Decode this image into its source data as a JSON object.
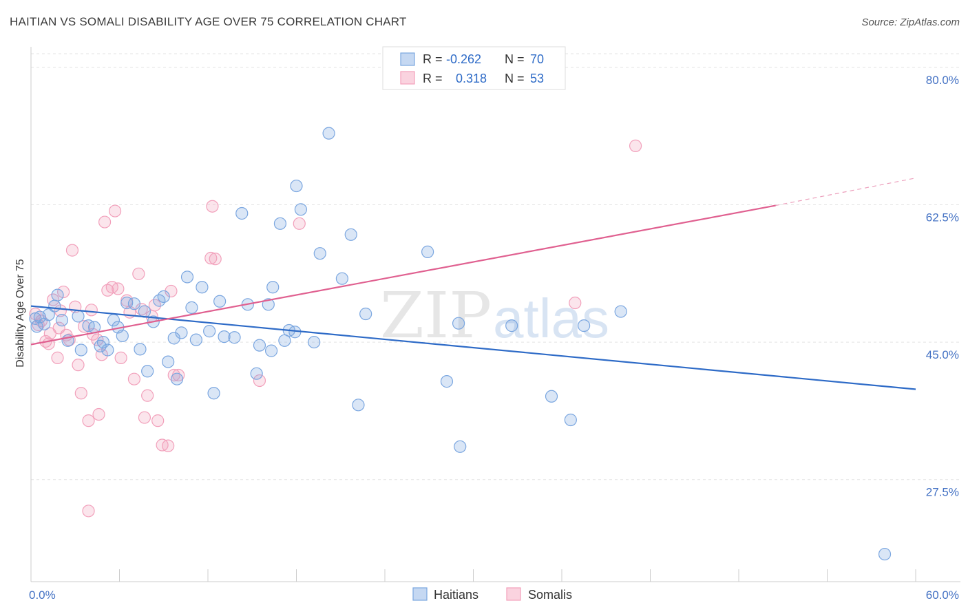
{
  "title": "HAITIAN VS SOMALI DISABILITY AGE OVER 75 CORRELATION CHART",
  "source": "Source: ZipAtlas.com",
  "chart_data": {
    "type": "scatter",
    "ylabel": "Disability Age Over 75",
    "x_tick_labels": [
      "0.0%",
      "60.0%"
    ],
    "y_tick_labels": [
      "80.0%",
      "62.5%",
      "45.0%",
      "27.5%"
    ],
    "y_ticks": [
      80.0,
      62.5,
      45.0,
      27.5
    ],
    "xlim": [
      0,
      60
    ],
    "ylim": [
      14.5,
      82
    ],
    "grid": true,
    "legend_position": "top-center",
    "watermark": [
      "ZIP",
      "atlas"
    ],
    "series": [
      {
        "name": "Haitians",
        "color": "#7aa6e0",
        "line_color": "#2e6bc7",
        "legend_r_label": "R = ",
        "legend_r_value": "-0.262",
        "legend_n_label": "N = ",
        "legend_n_value": "70",
        "trend": {
          "x": [
            0,
            60
          ],
          "y": [
            49.6,
            39.0
          ]
        },
        "points": [
          [
            0.4,
            47.0
          ],
          [
            0.6,
            48.2
          ],
          [
            0.9,
            47.3
          ],
          [
            1.2,
            48.5
          ],
          [
            1.6,
            49.6
          ],
          [
            1.8,
            51.0
          ],
          [
            2.1,
            47.8
          ],
          [
            2.5,
            45.2
          ],
          [
            3.2,
            48.3
          ],
          [
            3.4,
            44.0
          ],
          [
            3.9,
            47.1
          ],
          [
            4.3,
            46.9
          ],
          [
            4.7,
            44.5
          ],
          [
            4.9,
            45.0
          ],
          [
            5.2,
            44.0
          ],
          [
            5.6,
            47.8
          ],
          [
            5.9,
            46.9
          ],
          [
            6.2,
            45.8
          ],
          [
            6.5,
            50.0
          ],
          [
            7.0,
            49.9
          ],
          [
            7.4,
            44.1
          ],
          [
            7.7,
            48.9
          ],
          [
            7.9,
            41.3
          ],
          [
            8.3,
            47.6
          ],
          [
            8.7,
            50.3
          ],
          [
            9.0,
            50.8
          ],
          [
            9.3,
            42.5
          ],
          [
            9.7,
            45.5
          ],
          [
            9.9,
            40.3
          ],
          [
            10.2,
            46.2
          ],
          [
            10.6,
            53.3
          ],
          [
            10.9,
            49.4
          ],
          [
            11.2,
            45.3
          ],
          [
            11.6,
            52.0
          ],
          [
            12.1,
            46.4
          ],
          [
            12.4,
            38.5
          ],
          [
            12.8,
            50.2
          ],
          [
            13.1,
            45.7
          ],
          [
            13.8,
            45.6
          ],
          [
            14.3,
            61.4
          ],
          [
            14.7,
            49.8
          ],
          [
            15.3,
            41.0
          ],
          [
            15.5,
            44.6
          ],
          [
            16.1,
            49.8
          ],
          [
            16.3,
            43.9
          ],
          [
            16.4,
            52.0
          ],
          [
            16.9,
            60.1
          ],
          [
            17.2,
            45.2
          ],
          [
            17.5,
            46.5
          ],
          [
            17.9,
            46.3
          ],
          [
            18.0,
            64.9
          ],
          [
            18.3,
            61.9
          ],
          [
            19.2,
            45.0
          ],
          [
            19.6,
            56.3
          ],
          [
            20.2,
            71.6
          ],
          [
            21.1,
            53.1
          ],
          [
            21.7,
            58.7
          ],
          [
            22.2,
            37.0
          ],
          [
            22.7,
            48.6
          ],
          [
            26.9,
            56.5
          ],
          [
            28.2,
            40.0
          ],
          [
            29.0,
            47.4
          ],
          [
            29.1,
            31.7
          ],
          [
            32.6,
            47.1
          ],
          [
            35.3,
            38.1
          ],
          [
            36.6,
            35.1
          ],
          [
            37.5,
            47.1
          ],
          [
            40.0,
            48.9
          ],
          [
            57.9,
            18.0
          ],
          [
            0.3,
            48.0
          ]
        ]
      },
      {
        "name": "Somalis",
        "color": "#f2a0bb",
        "line_color": "#e06090",
        "legend_r_label": "R = ",
        "legend_r_value": "0.318",
        "legend_n_label": "N = ",
        "legend_n_value": "53",
        "trend": {
          "x": [
            0,
            50.5
          ],
          "y": [
            44.7,
            62.4
          ]
        },
        "trend_ext": {
          "x": [
            50.5,
            60
          ],
          "y": [
            62.4,
            65.9
          ]
        },
        "points": [
          [
            0.3,
            48.6
          ],
          [
            0.7,
            47.7
          ],
          [
            1.0,
            45.1
          ],
          [
            1.3,
            46.1
          ],
          [
            1.5,
            50.4
          ],
          [
            1.8,
            43.0
          ],
          [
            2.0,
            49.0
          ],
          [
            2.2,
            51.4
          ],
          [
            2.6,
            45.3
          ],
          [
            2.8,
            56.7
          ],
          [
            3.0,
            49.5
          ],
          [
            3.2,
            42.1
          ],
          [
            3.4,
            38.5
          ],
          [
            3.6,
            47.0
          ],
          [
            3.9,
            35.0
          ],
          [
            4.1,
            49.1
          ],
          [
            4.5,
            45.3
          ],
          [
            4.6,
            35.8
          ],
          [
            4.8,
            43.4
          ],
          [
            5.0,
            60.3
          ],
          [
            5.2,
            51.6
          ],
          [
            5.5,
            52.0
          ],
          [
            5.7,
            61.7
          ],
          [
            5.9,
            51.8
          ],
          [
            6.1,
            43.0
          ],
          [
            6.5,
            50.3
          ],
          [
            7.0,
            40.3
          ],
          [
            7.3,
            53.7
          ],
          [
            7.7,
            35.4
          ],
          [
            7.9,
            38.2
          ],
          [
            8.2,
            48.3
          ],
          [
            8.4,
            49.7
          ],
          [
            8.6,
            35.0
          ],
          [
            8.9,
            31.9
          ],
          [
            9.3,
            31.8
          ],
          [
            9.5,
            51.5
          ],
          [
            9.7,
            40.8
          ],
          [
            10.0,
            40.8
          ],
          [
            12.3,
            62.3
          ],
          [
            12.2,
            55.7
          ],
          [
            12.5,
            55.6
          ],
          [
            15.5,
            40.1
          ],
          [
            18.2,
            60.1
          ],
          [
            36.9,
            50.0
          ],
          [
            41.0,
            70.0
          ],
          [
            3.9,
            23.5
          ],
          [
            1.2,
            44.8
          ],
          [
            2.4,
            45.9
          ],
          [
            6.7,
            48.8
          ],
          [
            7.5,
            49.2
          ],
          [
            0.5,
            47.2
          ],
          [
            1.9,
            46.8
          ],
          [
            4.2,
            46.0
          ]
        ]
      }
    ]
  }
}
